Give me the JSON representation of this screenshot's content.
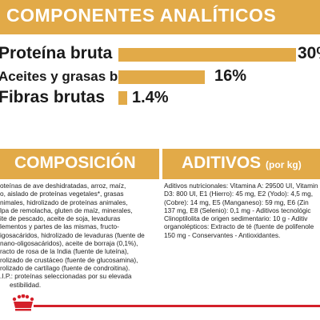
{
  "header": {
    "title": "COMPONENTES ANALÍTICOS"
  },
  "analytics": [
    {
      "label": "Proteína bruta",
      "value": "30%",
      "percent": 30
    },
    {
      "label": "Aceites y grasas brutos",
      "value": "16%",
      "percent": 16
    },
    {
      "label": "Fibras brutas",
      "value": "1.4%",
      "percent": 1.4
    }
  ],
  "composition": {
    "title": "COMPOSICIÓN",
    "lines": [
      "oteínas de ave deshidratadas, arroz, maíz,",
      "o, aislado de proteínas vegetales*, grasas",
      "nimales, hidrolizado de proteínas animales,",
      "lpa de remolacha, gluten de maíz, minerales,",
      "ite de pescado, aceite de soja, levaduras",
      "lementos y partes de las mismas, fructo-",
      "igosacáridos, hidrolizado de levaduras (fuente de",
      "nano-oligosacáridos), aceite de borraja (0,1%),",
      "racto de rosa de la India (fuente de luteína),",
      "rolizado de crustáceo (fuente de glucosamina),",
      "rolizado de cartílago (fuente de condroitina).",
      ".I.P.: proteínas seleccionadas por su elevada",
      "estibilidad."
    ]
  },
  "additives": {
    "title": "ADITIVOS",
    "subtitle": "(por kg)",
    "lines": [
      "Aditivos nutricionales: Vitamina A: 29500 UI, Vitamin",
      "D3: 800 UI, E1 (Hierro): 45 mg, E2 (Yodo): 4,5 mg,",
      "(Cobre): 14 mg, E5 (Manganeso): 59 mg, E6 (Zin",
      "137 mg, E8 (Selenio): 0,1 mg - Aditivos tecnológic",
      "Clinoptilolita de origen sedimentario: 10 g - Aditiv",
      "organolépticos: Extracto de té (fuente de polifenole",
      "150 mg - Conservantes - Antioxidantes."
    ]
  },
  "colors": {
    "accent": "#e2aa48",
    "brand_red": "#d4202a"
  },
  "logo": {
    "icon": "royal-canin-crown-icon"
  }
}
